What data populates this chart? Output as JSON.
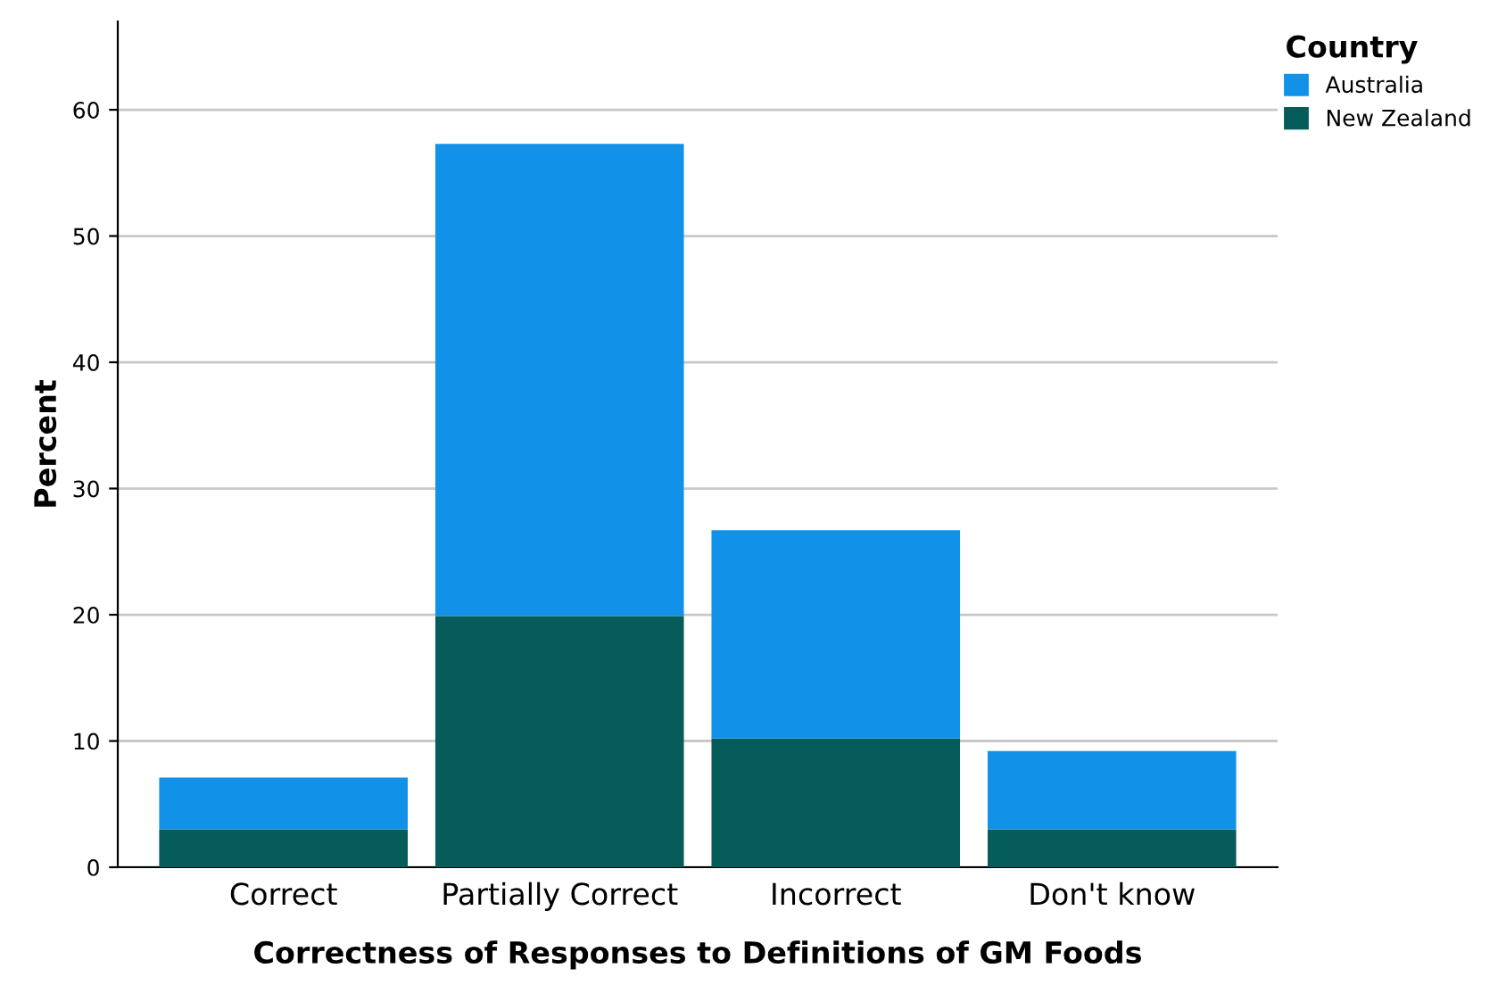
{
  "chart_data": {
    "type": "bar",
    "stacked": true,
    "xlabel": "Correctness of Responses to Definitions of GM Foods",
    "ylabel": "Percent",
    "categories": [
      "Correct",
      "Partially Correct",
      "Incorrect",
      "Don't know"
    ],
    "series": [
      {
        "name": "New Zealand",
        "color": "#065c58",
        "values": [
          3.0,
          19.9,
          10.2,
          3.0
        ]
      },
      {
        "name": "Australia",
        "color": "#1192e8",
        "values": [
          4.1,
          37.4,
          16.5,
          6.2
        ]
      }
    ],
    "ylim": [
      0,
      67
    ],
    "yticks": [
      0,
      10,
      20,
      30,
      40,
      50,
      60
    ],
    "grid": "y",
    "legend": "top right",
    "legend_title": "Country"
  }
}
